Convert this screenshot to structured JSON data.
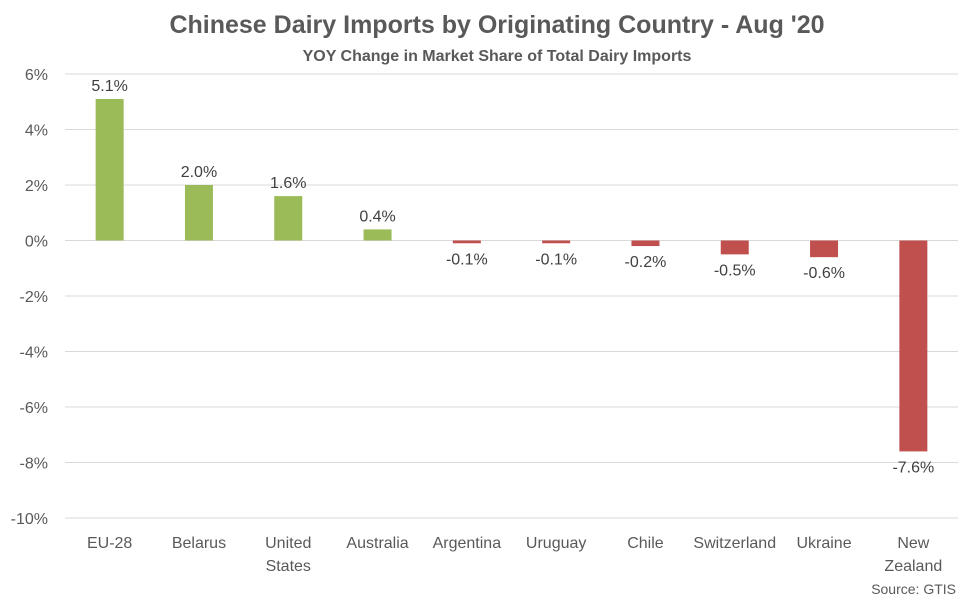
{
  "chart_data": {
    "type": "bar",
    "title": "Chinese Dairy Imports by Originating Country - Aug '20",
    "subtitle": "YOY Change in Market Share of Total Dairy Imports",
    "categories": [
      "EU-28",
      "Belarus",
      "United States",
      "Australia",
      "Argentina",
      "Uruguay",
      "Chile",
      "Switzerland",
      "Ukraine",
      "New Zealand"
    ],
    "category_lines": [
      [
        "EU-28"
      ],
      [
        "Belarus"
      ],
      [
        "United",
        "States"
      ],
      [
        "Australia"
      ],
      [
        "Argentina"
      ],
      [
        "Uruguay"
      ],
      [
        "Chile"
      ],
      [
        "Switzerland"
      ],
      [
        "Ukraine"
      ],
      [
        "New",
        "Zealand"
      ]
    ],
    "values": [
      5.1,
      2.0,
      1.6,
      0.4,
      -0.1,
      -0.1,
      -0.2,
      -0.5,
      -0.6,
      -7.6
    ],
    "data_labels": [
      "5.1%",
      "2.0%",
      "1.6%",
      "0.4%",
      "-0.1%",
      "-0.1%",
      "-0.2%",
      "-0.5%",
      "-0.6%",
      "-7.6%"
    ],
    "ylim": [
      -10,
      6
    ],
    "yticks": [
      6,
      4,
      2,
      0,
      -2,
      -4,
      -6,
      -8,
      -10
    ],
    "ytick_labels": [
      "6%",
      "4%",
      "2%",
      "0%",
      "-2%",
      "-4%",
      "-6%",
      "-8%",
      "-10%"
    ],
    "grid": true,
    "legend": "none",
    "colors": {
      "positive": "#9bbb59",
      "negative": "#c0504d",
      "grid": "#d9d9d9",
      "text": "#595959"
    },
    "source": "Source: GTIS"
  }
}
